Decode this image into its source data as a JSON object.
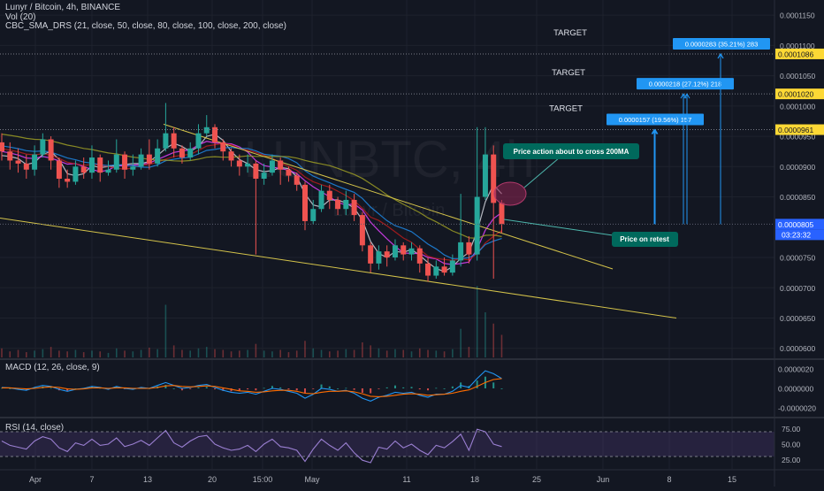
{
  "header": {
    "title": "Lunyr / Bitcoin, 4h, BINANCE",
    "volume": "Vol (20)",
    "sma": "CBC_SMA_DRS (21, close, 50, close, 80, close, 100, close, 200, close)",
    "macd": "MACD (12, 26, close, 9)",
    "rsi": "RSI (14, close)"
  },
  "watermark": {
    "symbol": "LUNBTC, 4h",
    "name": "Lunyr / Bitcoin"
  },
  "chart_data": {
    "type": "candlestick",
    "x_ticks": [
      "Apr",
      "7",
      "13",
      "20",
      "15:00",
      "May",
      "11",
      "18",
      "25",
      "Jun",
      "8",
      "15"
    ],
    "price_axis": {
      "ticks": [
        "0.0001150",
        "0.0001100",
        "0.0001050",
        "0.0001000",
        "0.0000950",
        "0.0000900",
        "0.0000850",
        "0.0000750",
        "0.0000700",
        "0.0000650",
        "0.0000600"
      ],
      "tick_values": [
        0.000115,
        0.00011,
        0.000105,
        0.0001,
        9.5e-05,
        9e-05,
        8.5e-05,
        7.5e-05,
        7e-05,
        6.5e-05,
        6e-05
      ],
      "range": [
        5.85e-05,
        0.0001175
      ]
    },
    "price_labels": [
      {
        "text": "0.0001086",
        "value": 0.0001086,
        "color": "#fdd835"
      },
      {
        "text": "0.0001020",
        "value": 0.000102,
        "color": "#fdd835"
      },
      {
        "text": "0.0000961",
        "value": 9.61e-05,
        "color": "#fdd835"
      },
      {
        "text": "0.0000805",
        "value": 8.05e-05,
        "color": "#2962ff"
      }
    ],
    "countdown": "03:23:32",
    "macd_axis": {
      "ticks": [
        "0.0000020",
        "0.0000000",
        "-0.0000020"
      ],
      "tick_values": [
        2e-06,
        0,
        -2e-06
      ],
      "range": [
        -2.8e-06,
        2.8e-06
      ]
    },
    "rsi_axis": {
      "ticks": [
        "75.00",
        "50.00",
        "25.00"
      ],
      "tick_values": [
        75,
        50,
        25
      ],
      "range": [
        10,
        90
      ],
      "bands": [
        70,
        30
      ]
    },
    "targets": [
      {
        "label": "TARGET",
        "price": 9.61e-05,
        "box": "0.0000157 (19.56%) 157"
      },
      {
        "label": "TARGET",
        "price": 0.000102,
        "box": "0.0000218 (27.12%) 218"
      },
      {
        "label": "TARGET",
        "price": 0.0001086,
        "box": "0.0000283 (35.21%) 283"
      }
    ],
    "current_price": 8.05e-05,
    "annotations": [
      "Price action about to cross 200MA",
      "Price on retest"
    ],
    "trendlines": [
      {
        "from": [
          "Apr 13",
          9.7e-05
        ],
        "to": [
          "Jun 1",
          7.31e-05
        ]
      },
      {
        "from": [
          "Mar 30",
          8.15e-05
        ],
        "to": [
          "Jun 6",
          6.5e-05
        ]
      }
    ],
    "candles": [
      [
        9.4e-05,
        9.25e-05,
        9.55e-05,
        9.1e-05
      ],
      [
        9.25e-05,
        9.1e-05,
        9.4e-05,
        8.95e-05
      ],
      [
        9.1e-05,
        9.05e-05,
        9.3e-05,
        8.9e-05
      ],
      [
        9.05e-05,
        8.95e-05,
        9.2e-05,
        8.8e-05
      ],
      [
        8.95e-05,
        9.2e-05,
        9.35e-05,
        8.85e-05
      ],
      [
        9.2e-05,
        9.45e-05,
        9.55e-05,
        9.15e-05
      ],
      [
        9.45e-05,
        9.1e-05,
        9.5e-05,
        8.95e-05
      ],
      [
        9.1e-05,
        8.8e-05,
        9.15e-05,
        8.65e-05
      ],
      [
        8.8e-05,
        8.75e-05,
        8.95e-05,
        8.65e-05
      ],
      [
        8.75e-05,
        9e-05,
        9.1e-05,
        8.7e-05
      ],
      [
        9e-05,
        8.9e-05,
        9.15e-05,
        8.8e-05
      ],
      [
        8.9e-05,
        9.15e-05,
        9.35e-05,
        8.8e-05
      ],
      [
        9.15e-05,
        8.9e-05,
        9.2e-05,
        8.75e-05
      ],
      [
        8.9e-05,
        8.95e-05,
        9.1e-05,
        8.85e-05
      ],
      [
        8.95e-05,
        9.2e-05,
        9.45e-05,
        8.9e-05
      ],
      [
        9.2e-05,
        8.95e-05,
        9.25e-05,
        8.8e-05
      ],
      [
        8.95e-05,
        9e-05,
        9.2e-05,
        8.85e-05
      ],
      [
        9e-05,
        9.2e-05,
        9.3e-05,
        8.95e-05
      ],
      [
        9.2e-05,
        9.05e-05,
        9.45e-05,
        8.95e-05
      ],
      [
        9.05e-05,
        9.3e-05,
        9.45e-05,
        9e-05
      ],
      [
        9.3e-05,
        9.55e-05,
        0.0001005,
        9.25e-05
      ],
      [
        9.55e-05,
        9.3e-05,
        9.65e-05,
        9.15e-05
      ],
      [
        9.3e-05,
        9.15e-05,
        9.35e-05,
        9.05e-05
      ],
      [
        9.15e-05,
        9.3e-05,
        9.4e-05,
        9.1e-05
      ],
      [
        9.3e-05,
        9.55e-05,
        9.7e-05,
        9.2e-05
      ],
      [
        9.55e-05,
        9.65e-05,
        9.85e-05,
        9.5e-05
      ],
      [
        9.65e-05,
        9.4e-05,
        9.7e-05,
        9.3e-05
      ],
      [
        9.4e-05,
        9.25e-05,
        9.45e-05,
        9.1e-05
      ],
      [
        9.25e-05,
        9.1e-05,
        9.3e-05,
        9e-05
      ],
      [
        9.1e-05,
        9e-05,
        9.2e-05,
        8.85e-05
      ],
      [
        9e-05,
        9.05e-05,
        9.2e-05,
        8.9e-05
      ],
      [
        9.05e-05,
        8.8e-05,
        9.1e-05,
        7.55e-05
      ],
      [
        8.8e-05,
        8.9e-05,
        9.05e-05,
        8.7e-05
      ],
      [
        8.9e-05,
        9.1e-05,
        9.2e-05,
        8.85e-05
      ],
      [
        9.1e-05,
        8.95e-05,
        9.15e-05,
        8.7e-05
      ],
      [
        8.95e-05,
        8.85e-05,
        9e-05,
        8.75e-05
      ],
      [
        8.85e-05,
        8.7e-05,
        8.9e-05,
        8.6e-05
      ],
      [
        8.7e-05,
        8.1e-05,
        8.75e-05,
        7.95e-05
      ],
      [
        8.1e-05,
        8.3e-05,
        8.45e-05,
        8.05e-05
      ],
      [
        8.3e-05,
        8.6e-05,
        8.7e-05,
        8.25e-05
      ],
      [
        8.6e-05,
        8.45e-05,
        8.7e-05,
        8.3e-05
      ],
      [
        8.45e-05,
        8.3e-05,
        8.5e-05,
        8.2e-05
      ],
      [
        8.3e-05,
        8.45e-05,
        8.6e-05,
        8.2e-05
      ],
      [
        8.45e-05,
        8.2e-05,
        8.55e-05,
        8.1e-05
      ],
      [
        8.2e-05,
        7.7e-05,
        8.25e-05,
        7.6e-05
      ],
      [
        7.7e-05,
        7.4e-05,
        7.75e-05,
        7.25e-05
      ],
      [
        7.4e-05,
        7.6e-05,
        7.7e-05,
        7.3e-05
      ],
      [
        7.6e-05,
        7.5e-05,
        7.7e-05,
        7.35e-05
      ],
      [
        7.5e-05,
        7.7e-05,
        7.8e-05,
        7.45e-05
      ],
      [
        7.7e-05,
        7.55e-05,
        7.75e-05,
        7.45e-05
      ],
      [
        7.55e-05,
        7.65e-05,
        7.75e-05,
        7.45e-05
      ],
      [
        7.65e-05,
        7.4e-05,
        7.7e-05,
        7.25e-05
      ],
      [
        7.4e-05,
        7.2e-05,
        7.5e-05,
        7.1e-05
      ],
      [
        7.2e-05,
        7.35e-05,
        7.45e-05,
        7.15e-05
      ],
      [
        7.35e-05,
        7.25e-05,
        7.5e-05,
        7.2e-05
      ],
      [
        7.25e-05,
        7.45e-05,
        7.55e-05,
        7.2e-05
      ],
      [
        7.45e-05,
        7.75e-05,
        8.55e-05,
        7.35e-05
      ],
      [
        7.75e-05,
        7.55e-05,
        7.85e-05,
        7.4e-05
      ],
      [
        7.55e-05,
        8.5e-05,
        9.65e-05,
        7.45e-05
      ],
      [
        8.5e-05,
        9.2e-05,
        9.65e-05,
        8.45e-05
      ],
      [
        9.2e-05,
        8.4e-05,
        9.35e-05,
        7.15e-05
      ],
      [
        8.4e-05,
        8.05e-05,
        8.45e-05,
        7.9e-05
      ]
    ],
    "volume": [
      12,
      8,
      10,
      7,
      9,
      11,
      14,
      9,
      8,
      10,
      7,
      9,
      8,
      6,
      12,
      9,
      8,
      10,
      13,
      11,
      70,
      16,
      10,
      9,
      12,
      14,
      11,
      10,
      8,
      9,
      10,
      18,
      9,
      8,
      10,
      7,
      9,
      22,
      12,
      10,
      8,
      9,
      11,
      10,
      20,
      16,
      12,
      9,
      11,
      10,
      8,
      12,
      10,
      9,
      8,
      11,
      38,
      14,
      95,
      60,
      45,
      30
    ],
    "macd": [
      0.1,
      0.05,
      -0.1,
      -0.2,
      0.1,
      0.3,
      0.2,
      -0.1,
      -0.3,
      -0.1,
      0.0,
      0.2,
      0.1,
      -0.1,
      0.2,
      0.0,
      -0.1,
      0.1,
      0.0,
      0.3,
      0.6,
      0.3,
      0.0,
      0.1,
      0.3,
      0.4,
      0.1,
      -0.2,
      -0.4,
      -0.5,
      -0.4,
      -0.6,
      -0.3,
      0.0,
      -0.1,
      -0.3,
      -0.5,
      -1.0,
      -0.6,
      0.0,
      -0.1,
      -0.3,
      -0.2,
      -0.5,
      -1.0,
      -1.3,
      -0.9,
      -0.7,
      -0.4,
      -0.5,
      -0.4,
      -0.7,
      -0.9,
      -0.6,
      -0.6,
      -0.3,
      0.3,
      0.1,
      1.0,
      1.8,
      1.5,
      1.0
    ],
    "macd_signal": [
      0.05,
      0.05,
      0.0,
      -0.05,
      0.0,
      0.1,
      0.15,
      0.1,
      -0.05,
      -0.1,
      -0.05,
      0.05,
      0.05,
      0.0,
      0.05,
      0.05,
      0.0,
      0.0,
      0.0,
      0.1,
      0.25,
      0.3,
      0.2,
      0.15,
      0.2,
      0.25,
      0.2,
      0.05,
      -0.1,
      -0.25,
      -0.3,
      -0.4,
      -0.35,
      -0.25,
      -0.2,
      -0.2,
      -0.3,
      -0.5,
      -0.55,
      -0.4,
      -0.3,
      -0.3,
      -0.25,
      -0.35,
      -0.55,
      -0.8,
      -0.85,
      -0.8,
      -0.7,
      -0.6,
      -0.55,
      -0.6,
      -0.7,
      -0.65,
      -0.6,
      -0.5,
      -0.3,
      -0.15,
      0.2,
      0.6,
      0.9,
      1.0
    ],
    "rsi": [
      55,
      48,
      45,
      42,
      55,
      62,
      58,
      44,
      38,
      52,
      48,
      58,
      48,
      50,
      60,
      46,
      50,
      56,
      48,
      60,
      72,
      52,
      45,
      55,
      62,
      64,
      50,
      44,
      40,
      42,
      48,
      38,
      50,
      58,
      46,
      44,
      40,
      22,
      42,
      58,
      48,
      40,
      52,
      36,
      24,
      20,
      45,
      42,
      55,
      44,
      50,
      40,
      33,
      48,
      44,
      54,
      66,
      40,
      74,
      70,
      50,
      46
    ]
  }
}
